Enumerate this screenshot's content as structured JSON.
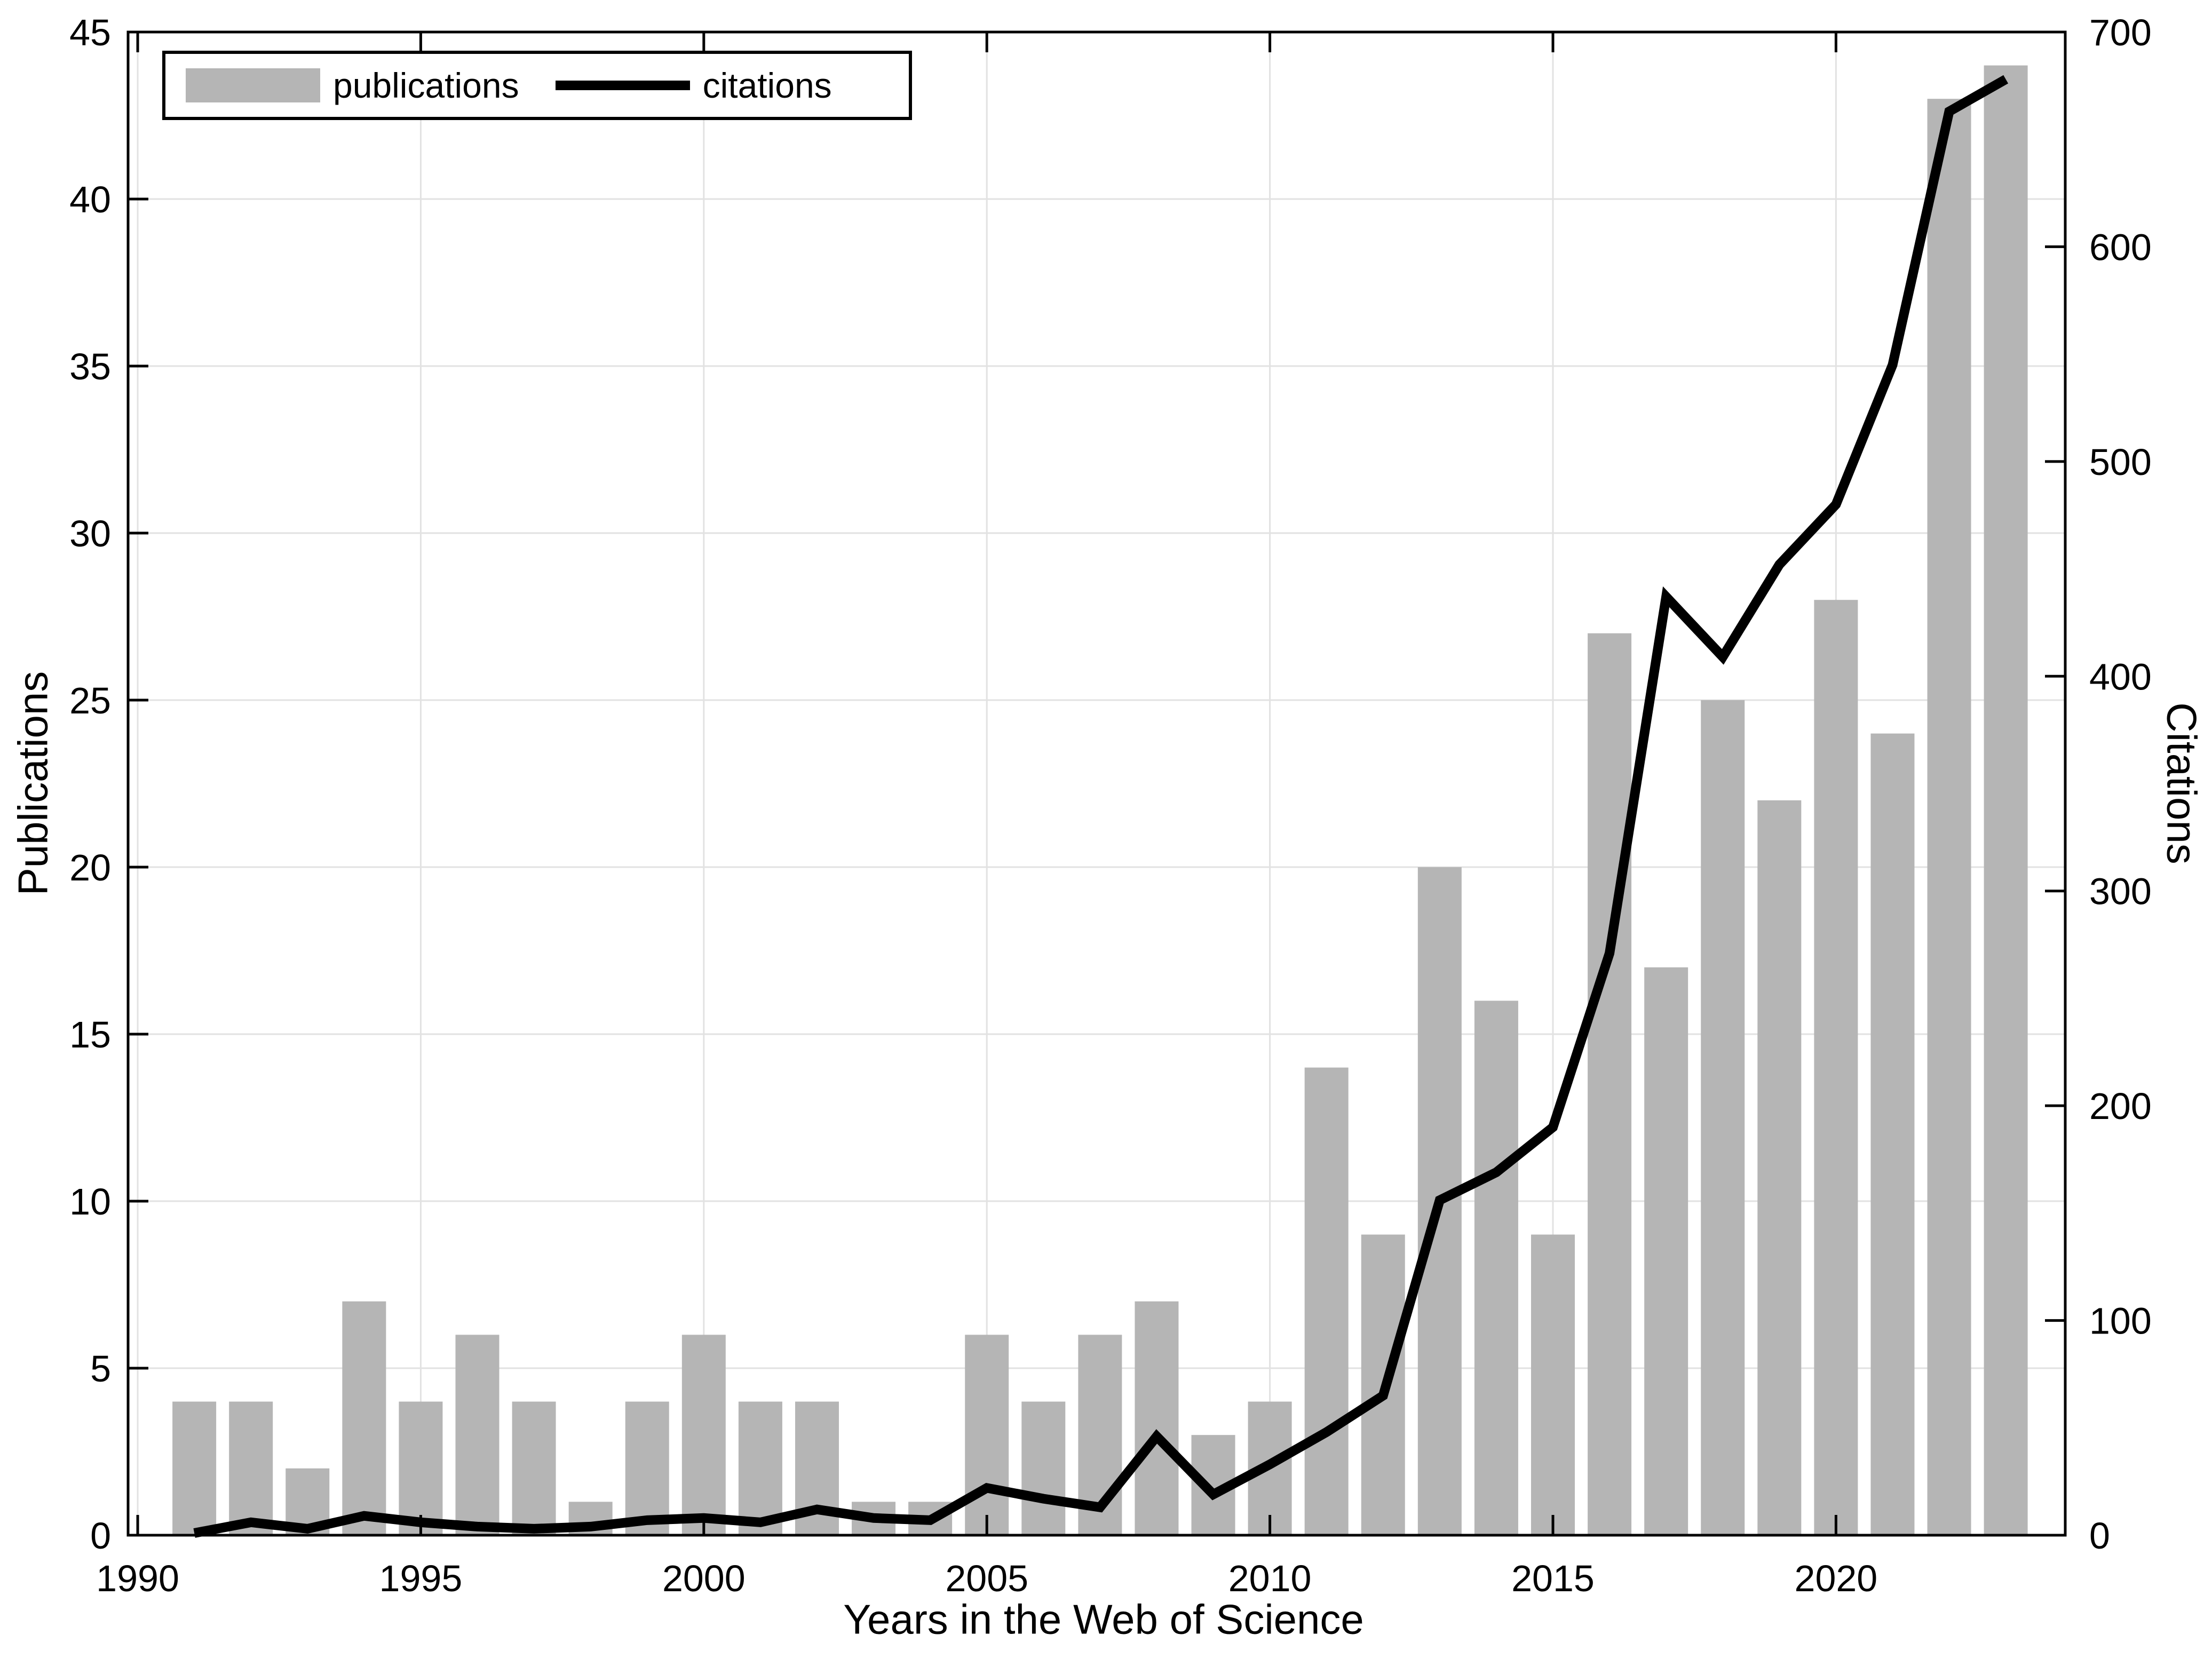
{
  "figure": {
    "background": "#ffffff"
  },
  "chart_data": {
    "type": "combo",
    "title": "",
    "x": [
      1991,
      1992,
      1993,
      1994,
      1995,
      1996,
      1997,
      1998,
      1999,
      2000,
      2001,
      2002,
      2003,
      2004,
      2005,
      2006,
      2007,
      2008,
      2009,
      2010,
      2011,
      2012,
      2013,
      2014,
      2015,
      2016,
      2017,
      2018,
      2019,
      2020,
      2021,
      2022,
      2023
    ],
    "series": [
      {
        "name": "publications",
        "type": "bar",
        "axis": "left",
        "color": "#b5b5b5",
        "values": [
          4,
          4,
          2,
          7,
          4,
          6,
          4,
          1,
          4,
          6,
          4,
          4,
          1,
          1,
          6,
          4,
          6,
          7,
          3,
          4,
          14,
          9,
          20,
          16,
          9,
          27,
          17,
          25,
          22,
          28,
          24,
          43,
          44
        ]
      },
      {
        "name": "citations",
        "type": "line",
        "axis": "right",
        "color": "#000000",
        "values": [
          1,
          6,
          3,
          9,
          6,
          4,
          3,
          4,
          7,
          8,
          6,
          12,
          8,
          7,
          22,
          17,
          13,
          46,
          19,
          33,
          48,
          65,
          156,
          169,
          190,
          271,
          437,
          409,
          452,
          480,
          545,
          663,
          678
        ]
      }
    ],
    "xlabel": "Years in the Web of Science",
    "ylabel_left": "Publications",
    "ylabel_right": "Citations",
    "xlim": [
      1989.83,
      2024.05
    ],
    "ylim_left": [
      0,
      45
    ],
    "ylim_right": [
      0,
      700
    ],
    "xticks": [
      1990,
      1995,
      2000,
      2005,
      2010,
      2015,
      2020
    ],
    "yticks_left": [
      0,
      5,
      10,
      15,
      20,
      25,
      30,
      35,
      40,
      45
    ],
    "yticks_right": [
      0,
      100,
      200,
      300,
      400,
      500,
      600,
      700
    ],
    "grid": true,
    "legend": {
      "position": "top-left",
      "items": [
        {
          "label": "publications",
          "swatch": "bar"
        },
        {
          "label": "citations",
          "swatch": "line"
        }
      ]
    },
    "colors": {
      "bar": "#b5b5b5",
      "line": "#000000",
      "grid": "#e2e2e2",
      "axis": "#000000",
      "tick_label": "#000000",
      "background": "#ffffff"
    }
  }
}
